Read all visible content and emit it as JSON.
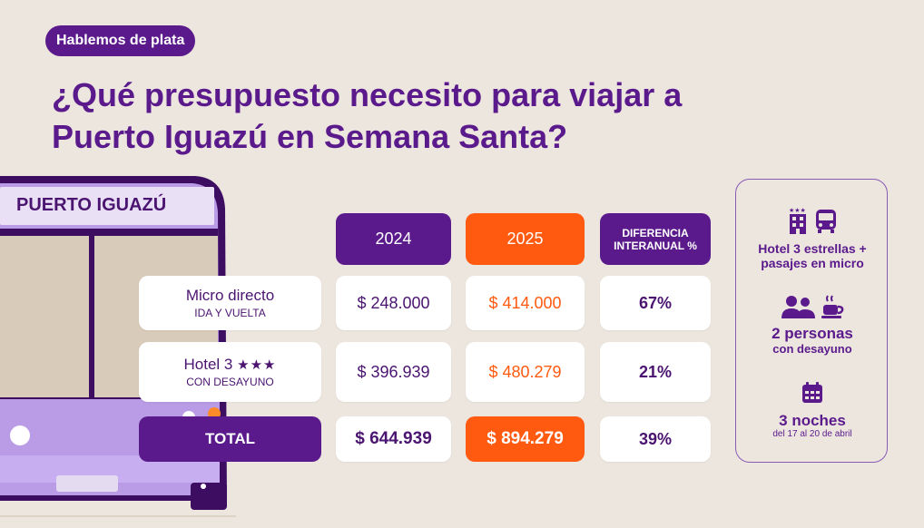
{
  "tag": "Hablemos de plata",
  "headline": {
    "line1": "¿Qué presupuesto necesito para viajar a",
    "line2": "Puerto Iguazú en Semana Santa?"
  },
  "bus_sign": "PUERTO IGUAZÚ",
  "table": {
    "headers": {
      "y2024": "2024",
      "y2025": "2025",
      "diff": "DIFERENCIA INTERANUAL %"
    },
    "rows": [
      {
        "title": "Micro directo",
        "subtitle": "IDA Y VUELTA",
        "v2024": "$ 248.000",
        "v2025": "$ 414.000",
        "diff": "67%"
      },
      {
        "title": "Hotel 3",
        "stars": "★★★",
        "subtitle": "CON DESAYUNO",
        "v2024": "$ 396.939",
        "v2025": "$ 480.279",
        "diff": "21%"
      }
    ],
    "total": {
      "label": "TOTAL",
      "v2024": "$ 644.939",
      "v2025": "$ 894.279",
      "diff": "39%"
    }
  },
  "side": {
    "block1": {
      "line1": "Hotel 3 estrellas +",
      "line2": "pasajes en micro"
    },
    "block2": {
      "line1": "2 personas",
      "line2": "con desayuno"
    },
    "block3": {
      "line1": "3 noches",
      "line2": "del 17 al 20 de abril"
    }
  },
  "colors": {
    "purple": "#5b1a8c",
    "orange": "#ff5a0f",
    "background": "#ece6df",
    "bus": "#b99be6"
  }
}
